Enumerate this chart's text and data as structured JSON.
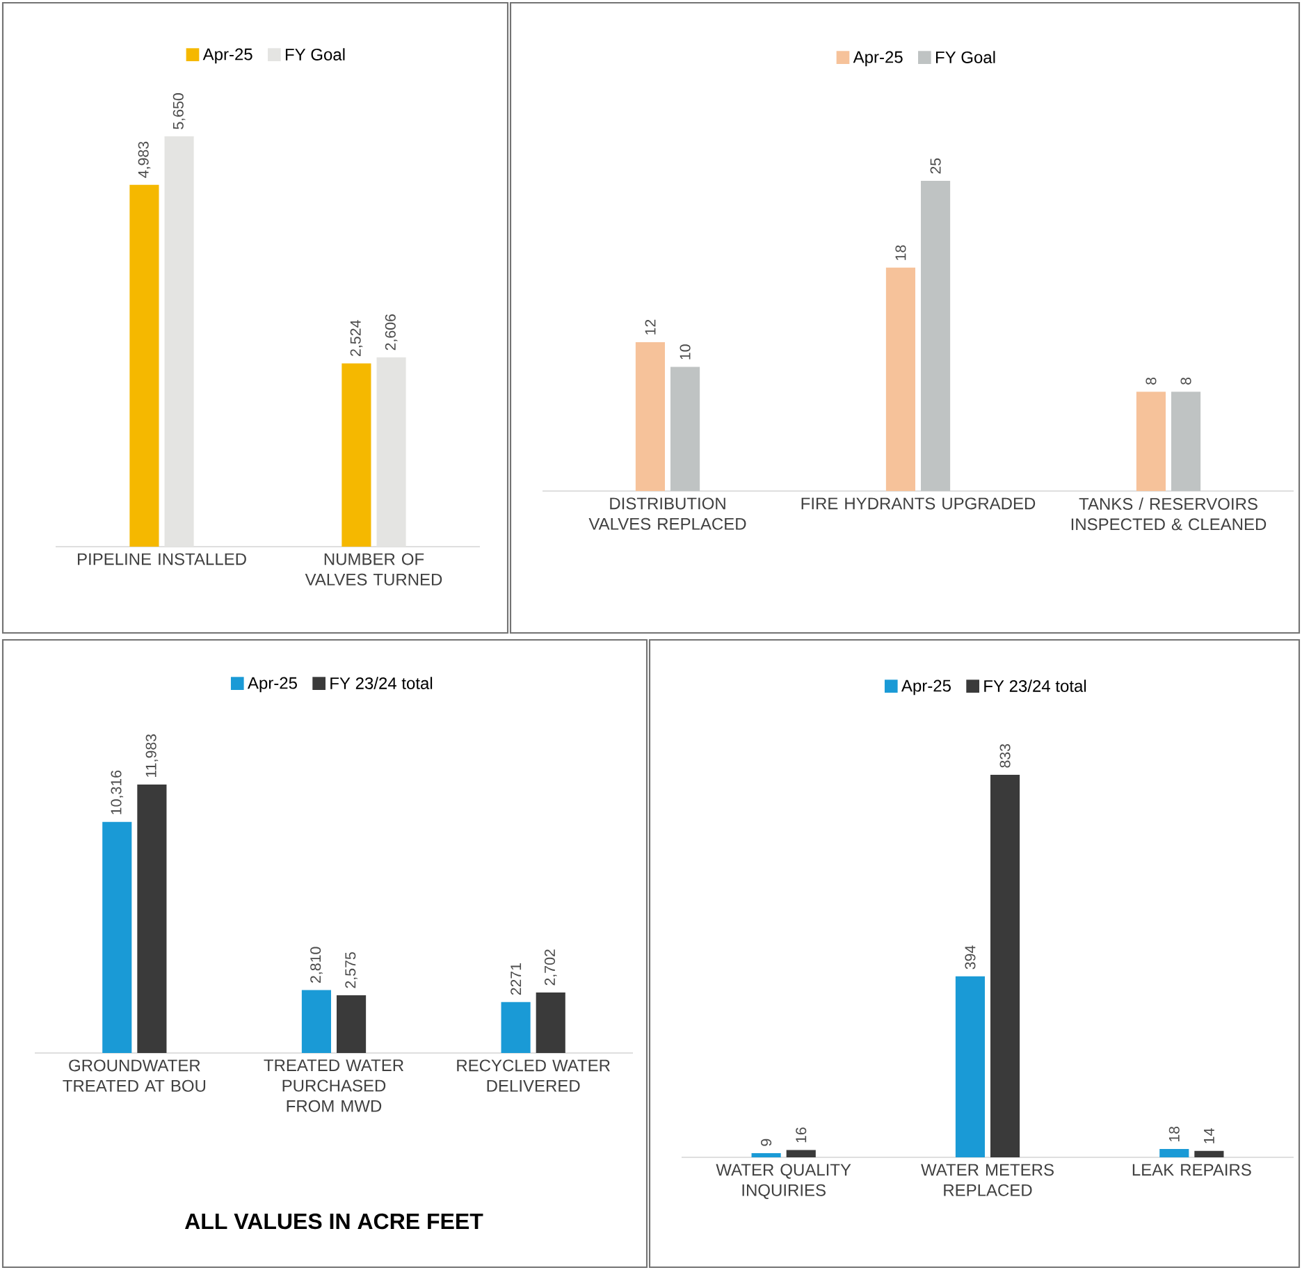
{
  "chart_data": [
    {
      "type": "bar",
      "categories": [
        "PIPELINE INSTALLED",
        "NUMBER OF VALVES TURNED"
      ],
      "legend": "top",
      "series": [
        {
          "name": "Apr-25",
          "color": "#f5b800",
          "values": [
            4983,
            2524
          ],
          "value_labels": [
            "4,983",
            "2,524"
          ]
        },
        {
          "name": "FY Goal",
          "color": "#e4e4e2",
          "values": [
            5650,
            2606
          ],
          "value_labels": [
            "5,650",
            "2,606"
          ]
        }
      ]
    },
    {
      "type": "bar",
      "categories": [
        "DISTRIBUTION VALVES REPLACED",
        "FIRE HYDRANTS UPGRADED",
        "TANKS / RESERVOIRS INSPECTED & CLEANED"
      ],
      "legend": "top",
      "series": [
        {
          "name": "Apr-25",
          "color": "#f6c29a",
          "values": [
            12,
            18,
            8
          ],
          "value_labels": [
            "12",
            "18",
            "8"
          ]
        },
        {
          "name": "FY Goal",
          "color": "#bfc3c3",
          "values": [
            10,
            25,
            8
          ],
          "value_labels": [
            "10",
            "25",
            "8"
          ]
        }
      ]
    },
    {
      "type": "bar",
      "categories": [
        "GROUNDWATER TREATED AT BOU",
        "TREATED WATER PURCHASED FROM MWD",
        "RECYCLED WATER DELIVERED"
      ],
      "legend": "top",
      "annotations": [
        "ALL VALUES IN ACRE FEET"
      ],
      "series": [
        {
          "name": "Apr-25",
          "color": "#1a9ad6",
          "values": [
            10316,
            2810,
            2271
          ],
          "value_labels": [
            "10,316",
            "2,810",
            "2271"
          ]
        },
        {
          "name": "FY 23/24 total",
          "color": "#3a3a3a",
          "values": [
            11983,
            2575,
            2702
          ],
          "value_labels": [
            "11,983",
            "2,575",
            "2,702"
          ]
        }
      ]
    },
    {
      "type": "bar",
      "categories": [
        "WATER QUALITY INQUIRIES",
        "WATER METERS REPLACED",
        "LEAK REPAIRS"
      ],
      "legend": "top",
      "series": [
        {
          "name": "Apr-25",
          "color": "#1a9ad6",
          "values": [
            9,
            394,
            18
          ],
          "value_labels": [
            "9",
            "394",
            "18"
          ]
        },
        {
          "name": "FY 23/24 total",
          "color": "#3a3a3a",
          "values": [
            16,
            833,
            14
          ],
          "value_labels": [
            "16",
            "833",
            "14"
          ]
        }
      ]
    }
  ]
}
